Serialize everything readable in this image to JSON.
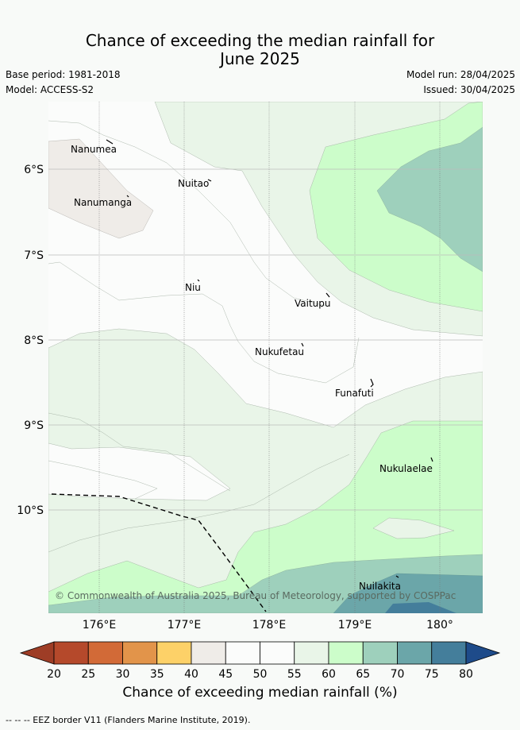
{
  "title_line1": "Chance of exceeding the median rainfall for",
  "title_line2": "June 2025",
  "meta": {
    "base_period": "Base period: 1981-2018",
    "model": "Model: ACCESS-S2",
    "model_run": "Model run: 28/04/2025",
    "issued": "Issued: 30/04/2025"
  },
  "map": {
    "lat_labels": [
      "6°S",
      "7°S",
      "8°S",
      "9°S",
      "10°S"
    ],
    "lon_labels": [
      "176°E",
      "177°E",
      "178°E",
      "179°E",
      "180°"
    ],
    "places": [
      "Nanumea",
      "Nuitao",
      "Nanumanga",
      "Niu",
      "Vaitupu",
      "Nukufetau",
      "Funafuti",
      "Nukulaelae",
      "Nuilakita"
    ],
    "copyright": "© Commonwealth of Australia 2025, Bureau of Meteorology, supported by COSPPac"
  },
  "colorbar": {
    "ticks": [
      "20",
      "25",
      "30",
      "35",
      "40",
      "45",
      "50",
      "55",
      "60",
      "65",
      "70",
      "75",
      "80"
    ],
    "colors": [
      "#b5492b",
      "#d26a37",
      "#e2944a",
      "#fdd168",
      "#efece8",
      "#fbfcfb",
      "#fbfcfb",
      "#e9f5e8",
      "#ccfdca",
      "#9ed0bc",
      "#6ba6a9",
      "#447e9b"
    ],
    "low_arrow_color": "#9e3d26",
    "high_arrow_color": "#1e4b8a",
    "label": "Chance of exceeding median rainfall (%)"
  },
  "footnote": "-- -- -- EEZ border V11 (Flanders Marine Institute, 2019)."
}
